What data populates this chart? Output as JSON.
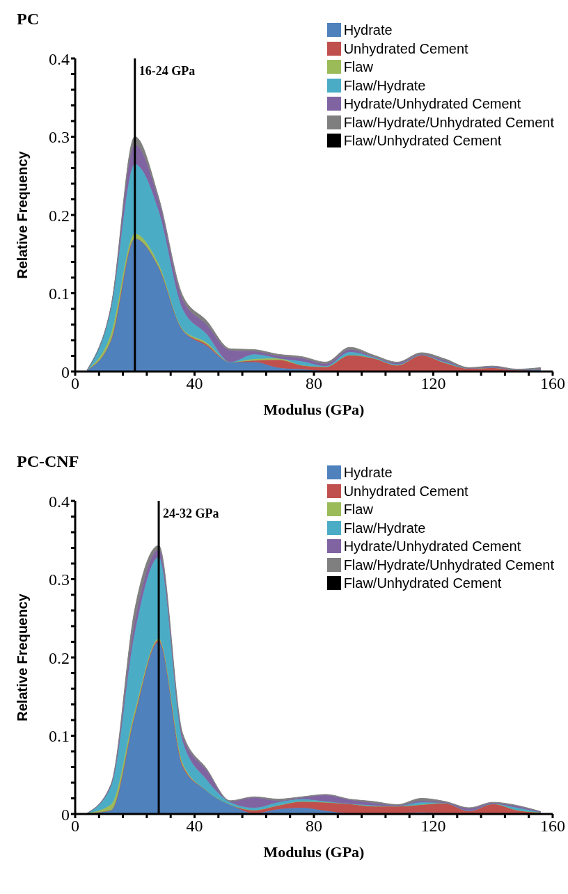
{
  "chart_data": [
    {
      "type": "area",
      "title": "PC",
      "xlabel": "Modulus (GPa)",
      "ylabel": "Relative Frequency",
      "stacked": true,
      "legend": "top right",
      "grid": false,
      "x": [
        4,
        12,
        20,
        28,
        36,
        44,
        52,
        60,
        68,
        76,
        84,
        92,
        100,
        108,
        116,
        124,
        132,
        140,
        148,
        156
      ],
      "xlim": [
        0,
        160
      ],
      "xticks": [
        0,
        {
          "value": 8,
          "label": null
        },
        {
          "value": 16,
          "label": null
        },
        {
          "value": 24,
          "label": null
        },
        {
          "value": 32,
          "label": null
        },
        40,
        {
          "value": 48,
          "label": null
        },
        {
          "value": 56,
          "label": null
        },
        {
          "value": 64,
          "label": null
        },
        {
          "value": 72,
          "label": null
        },
        80,
        {
          "value": 88,
          "label": null
        },
        {
          "value": 96,
          "label": null
        },
        {
          "value": 104,
          "label": null
        },
        {
          "value": 112,
          "label": null
        },
        120,
        {
          "value": 128,
          "label": null
        },
        {
          "value": 136,
          "label": null
        },
        {
          "value": 144,
          "label": null
        },
        {
          "value": 152,
          "label": null
        },
        160
      ],
      "ylim": [
        0,
        0.4
      ],
      "yticks": [
        0,
        {
          "value": 0.02,
          "label": null
        },
        {
          "value": 0.04,
          "label": null
        },
        {
          "value": 0.06,
          "label": null
        },
        {
          "value": 0.08,
          "label": null
        },
        0.1,
        {
          "value": 0.12,
          "label": null
        },
        {
          "value": 0.14,
          "label": null
        },
        {
          "value": 0.16,
          "label": null
        },
        {
          "value": 0.18,
          "label": null
        },
        0.2,
        {
          "value": 0.22,
          "label": null
        },
        {
          "value": 0.24,
          "label": null
        },
        {
          "value": 0.26,
          "label": null
        },
        {
          "value": 0.28,
          "label": null
        },
        0.3,
        {
          "value": 0.32,
          "label": null
        },
        {
          "value": 0.34,
          "label": null
        },
        {
          "value": 0.36,
          "label": null
        },
        {
          "value": 0.38,
          "label": null
        },
        0.4
      ],
      "ref_lines": [
        {
          "axis": "x",
          "value": 20,
          "label": "16-24 GPa",
          "color": "#000000"
        }
      ],
      "series": [
        {
          "name": "Hydrate",
          "color": "#4f81bd",
          "values": [
            0.002,
            0.04,
            0.17,
            0.133,
            0.053,
            0.033,
            0.012,
            0.012,
            0.005,
            0.003,
            0.001,
            0.001,
            0.001,
            0.001,
            0.001,
            0.001,
            0.001,
            0.001,
            0.001,
            0.002
          ]
        },
        {
          "name": "Unhydrated Cement",
          "color": "#c0504d",
          "values": [
            0,
            0,
            0,
            0,
            0,
            0.002,
            0,
            0.002,
            0.01,
            0.005,
            0.005,
            0.02,
            0.016,
            0.007,
            0.02,
            0.01,
            0.003,
            0.004,
            0.001,
            0.001
          ]
        },
        {
          "name": "Flaw",
          "color": "#9bbb59",
          "values": [
            0,
            0.008,
            0.006,
            0.004,
            0.001,
            0.002,
            0,
            0.002,
            0.002,
            0,
            0,
            0,
            0,
            0,
            0,
            0,
            0,
            0,
            0,
            0
          ]
        },
        {
          "name": "Flaw/Hydrate",
          "color": "#4bacc6",
          "values": [
            0,
            0.032,
            0.089,
            0.068,
            0.026,
            0.011,
            0,
            0.006,
            0,
            0.005,
            0.001,
            0.004,
            0.001,
            0.001,
            0,
            0.001,
            0,
            0,
            0,
            0
          ]
        },
        {
          "name": "Hydrate/Unhydrated Cement",
          "color": "#8064a2",
          "values": [
            0,
            0.002,
            0.025,
            0.013,
            0.012,
            0.012,
            0.015,
            0.004,
            0.003,
            0.004,
            0.003,
            0.003,
            0.001,
            0.002,
            0.001,
            0.002,
            0,
            0.001,
            0,
            0.001
          ]
        },
        {
          "name": "Flaw/Hydrate/Unhydrated Cement",
          "color": "#7f7f7f",
          "values": [
            0,
            0.001,
            0.01,
            0.004,
            0.005,
            0.005,
            0.002,
            0.002,
            0.002,
            0.002,
            0.002,
            0.003,
            0.002,
            0.001,
            0.002,
            0.002,
            0.001,
            0.001,
            0.001,
            0.001
          ]
        },
        {
          "name": "Flaw/Unhydrated Cement",
          "color": "#000000",
          "values": [
            null,
            null,
            null,
            null,
            null,
            null,
            null,
            null,
            null,
            null,
            null,
            null,
            null,
            null,
            null,
            null,
            null,
            null,
            null,
            null
          ]
        }
      ]
    },
    {
      "type": "area",
      "title": "PC-CNF",
      "xlabel": "Modulus (GPa)",
      "ylabel": "Relative Frequency",
      "stacked": true,
      "legend": "top right",
      "grid": false,
      "x": [
        4,
        12,
        20,
        28,
        36,
        44,
        52,
        60,
        68,
        76,
        84,
        92,
        100,
        108,
        116,
        124,
        132,
        140,
        148,
        156
      ],
      "xlim": [
        0,
        160
      ],
      "xticks": [
        0,
        {
          "value": 8,
          "label": null
        },
        {
          "value": 16,
          "label": null
        },
        {
          "value": 24,
          "label": null
        },
        {
          "value": 32,
          "label": null
        },
        40,
        {
          "value": 48,
          "label": null
        },
        {
          "value": 56,
          "label": null
        },
        {
          "value": 64,
          "label": null
        },
        {
          "value": 72,
          "label": null
        },
        80,
        {
          "value": 88,
          "label": null
        },
        {
          "value": 96,
          "label": null
        },
        {
          "value": 104,
          "label": null
        },
        {
          "value": 112,
          "label": null
        },
        120,
        {
          "value": 128,
          "label": null
        },
        {
          "value": 136,
          "label": null
        },
        {
          "value": 144,
          "label": null
        },
        {
          "value": 152,
          "label": null
        },
        160
      ],
      "ylim": [
        0,
        0.4
      ],
      "yticks": [
        0,
        {
          "value": 0.02,
          "label": null
        },
        {
          "value": 0.04,
          "label": null
        },
        {
          "value": 0.06,
          "label": null
        },
        {
          "value": 0.08,
          "label": null
        },
        0.1,
        {
          "value": 0.12,
          "label": null
        },
        {
          "value": 0.14,
          "label": null
        },
        {
          "value": 0.16,
          "label": null
        },
        {
          "value": 0.18,
          "label": null
        },
        0.2,
        {
          "value": 0.22,
          "label": null
        },
        {
          "value": 0.24,
          "label": null
        },
        {
          "value": 0.26,
          "label": null
        },
        {
          "value": 0.28,
          "label": null
        },
        0.3,
        {
          "value": 0.32,
          "label": null
        },
        {
          "value": 0.34,
          "label": null
        },
        {
          "value": 0.36,
          "label": null
        },
        {
          "value": 0.38,
          "label": null
        },
        0.4
      ],
      "ref_lines": [
        {
          "axis": "x",
          "value": 28,
          "label": "24-32 GPa",
          "color": "#000000"
        }
      ],
      "series": [
        {
          "name": "Hydrate",
          "color": "#4f81bd",
          "values": [
            0.001,
            0.005,
            0.127,
            0.22,
            0.06,
            0.03,
            0.012,
            0.001,
            0.006,
            0.008,
            0.004,
            0.001,
            0.001,
            0.001,
            0.002,
            0.001,
            0.001,
            0.001,
            0.001,
            0.001
          ]
        },
        {
          "name": "Unhydrated Cement",
          "color": "#c0504d",
          "values": [
            0,
            0,
            0,
            0.002,
            0.002,
            0,
            0,
            0.004,
            0.005,
            0.008,
            0.011,
            0.012,
            0.009,
            0.009,
            0.01,
            0.013,
            0.003,
            0.012,
            0.004,
            0.001
          ]
        },
        {
          "name": "Flaw",
          "color": "#9bbb59",
          "values": [
            0,
            0.007,
            0.005,
            0.002,
            0.003,
            0,
            0,
            0,
            0,
            0,
            0,
            0,
            0,
            0,
            0,
            0,
            0,
            0,
            0,
            0
          ]
        },
        {
          "name": "Flaw/Hydrate",
          "color": "#4bacc6",
          "values": [
            0,
            0.023,
            0.1,
            0.104,
            0.028,
            0.014,
            0.003,
            0.003,
            0.004,
            0.003,
            0.001,
            0,
            0.001,
            0,
            0.003,
            0,
            0,
            0,
            0.003,
            0
          ]
        },
        {
          "name": "Hydrate/Unhydrated Cement",
          "color": "#8064a2",
          "values": [
            0,
            0.002,
            0.014,
            0.01,
            0.006,
            0.012,
            0.001,
            0.013,
            0.002,
            0.002,
            0.008,
            0.005,
            0.003,
            0.001,
            0.002,
            0.001,
            0.003,
            0.001,
            0.002,
            0.001
          ]
        },
        {
          "name": "Flaw/Hydrate/Unhydrated Cement",
          "color": "#7f7f7f",
          "values": [
            0,
            0.001,
            0.016,
            0.005,
            0.004,
            0.002,
            0.001,
            0.001,
            0.002,
            0.001,
            0.001,
            0.001,
            0.002,
            0.001,
            0.003,
            0.001,
            0.001,
            0.001,
            0.001,
            0
          ]
        },
        {
          "name": "Flaw/Unhydrated Cement",
          "color": "#000000",
          "values": [
            null,
            null,
            null,
            null,
            null,
            null,
            null,
            null,
            null,
            null,
            null,
            null,
            null,
            null,
            null,
            null,
            null,
            null,
            null,
            null
          ]
        }
      ]
    }
  ]
}
